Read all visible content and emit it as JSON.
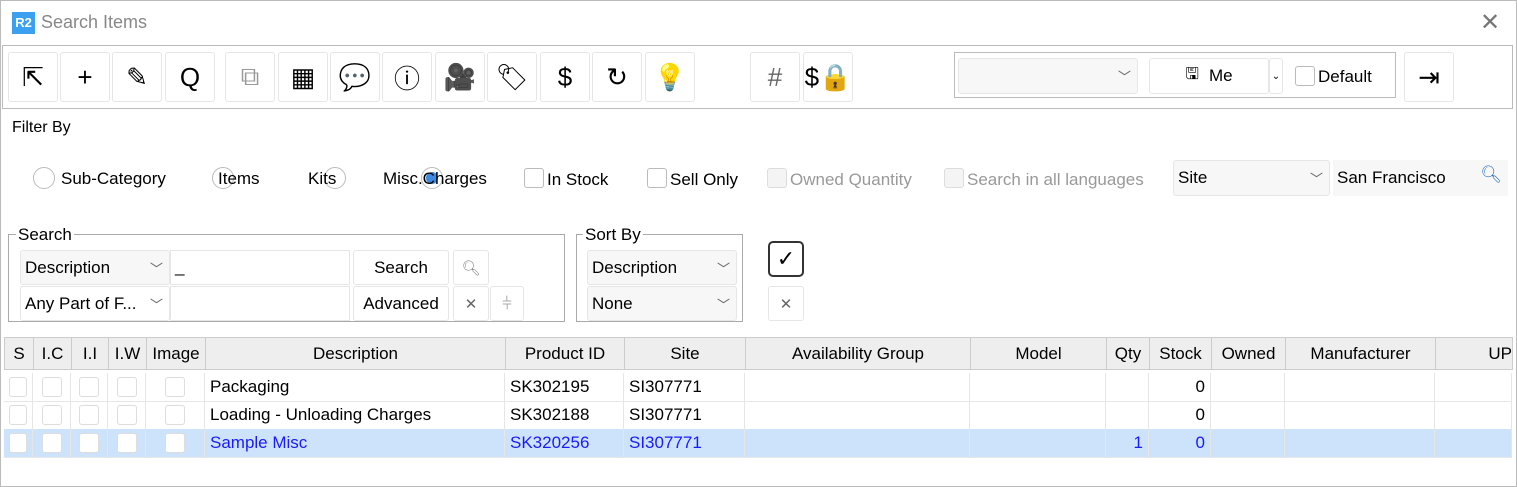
{
  "window": {
    "title": "Search Items",
    "logo_text": "R2"
  },
  "toolbar": {
    "buttons": [
      {
        "name": "select-icon",
        "glyph": "⇱"
      },
      {
        "name": "add-icon",
        "glyph": "+"
      },
      {
        "name": "edit-pencil-icon",
        "glyph": "✎"
      },
      {
        "name": "search-icon",
        "glyph": "Q"
      },
      {
        "name": "preview-search-icon",
        "glyph": "⧉"
      },
      {
        "name": "grid-view-icon",
        "glyph": "▦"
      },
      {
        "name": "comment-icon",
        "glyph": "💬"
      },
      {
        "name": "info-icon",
        "glyph": "ⓘ"
      },
      {
        "name": "video-camera-icon",
        "glyph": "🎥"
      },
      {
        "name": "price-tag-icon",
        "glyph": "🏷"
      },
      {
        "name": "shopping-bag-dollar-icon",
        "glyph": "$"
      },
      {
        "name": "refresh-document-icon",
        "glyph": "↻"
      },
      {
        "name": "lightbulb-icon",
        "glyph": "💡"
      },
      {
        "name": "hash-icon",
        "glyph": "#"
      },
      {
        "name": "price-lock-icon",
        "glyph": "$🔒"
      }
    ],
    "profile": {
      "value": "",
      "save_label": "Me",
      "default_label": "Default",
      "default_checked": false
    },
    "exit_icon": "exit-icon"
  },
  "filter": {
    "title": "Filter By",
    "radios": [
      {
        "label": "Sub-Category",
        "checked": false
      },
      {
        "label": "Items",
        "checked": false
      },
      {
        "label": "Kits",
        "checked": false
      },
      {
        "label": "Misc.Charges",
        "checked": true
      }
    ],
    "checkboxes": [
      {
        "label": "In Stock",
        "checked": false,
        "disabled": false
      },
      {
        "label": "Sell Only",
        "checked": false,
        "disabled": false
      },
      {
        "label": "Owned Quantity",
        "checked": false,
        "disabled": true
      },
      {
        "label": "Search in all languages",
        "checked": false,
        "disabled": true
      }
    ],
    "location_type": "Site",
    "location_value": "San Francisco"
  },
  "search": {
    "legend": "Search",
    "field": "Description",
    "match": "Any Part of F...",
    "value": "_",
    "value2": "",
    "search_label": "Search",
    "advanced_label": "Advanced"
  },
  "sort": {
    "legend": "Sort By",
    "field": "Description",
    "order": "None"
  },
  "table": {
    "columns": [
      "S",
      "I.C",
      "I.I",
      "I.W",
      "Image",
      "Description",
      "Product ID",
      "Site",
      "Availability Group",
      "Model",
      "Qty",
      "Stock",
      "Owned",
      "Manufacturer",
      "UP"
    ],
    "rows": [
      {
        "description": "Packaging",
        "product_id": "SK302195",
        "site": "SI307771",
        "availability_group": "",
        "model": "",
        "qty": "",
        "stock": "0",
        "owned": "",
        "manufacturer": "",
        "selected": false
      },
      {
        "description": "Loading - Unloading Charges",
        "product_id": "SK302188",
        "site": "SI307771",
        "availability_group": "",
        "model": "",
        "qty": "",
        "stock": "0",
        "owned": "",
        "manufacturer": "",
        "selected": false
      },
      {
        "description": "Sample Misc",
        "product_id": "SK320256",
        "site": "SI307771",
        "availability_group": "",
        "model": "",
        "qty": "1",
        "stock": "0",
        "owned": "",
        "manufacturer": "",
        "selected": true
      }
    ]
  },
  "colors": {
    "accent": "#3aa0ef",
    "selected_row": "#cce3fb",
    "selected_text": "#1a1aff"
  }
}
